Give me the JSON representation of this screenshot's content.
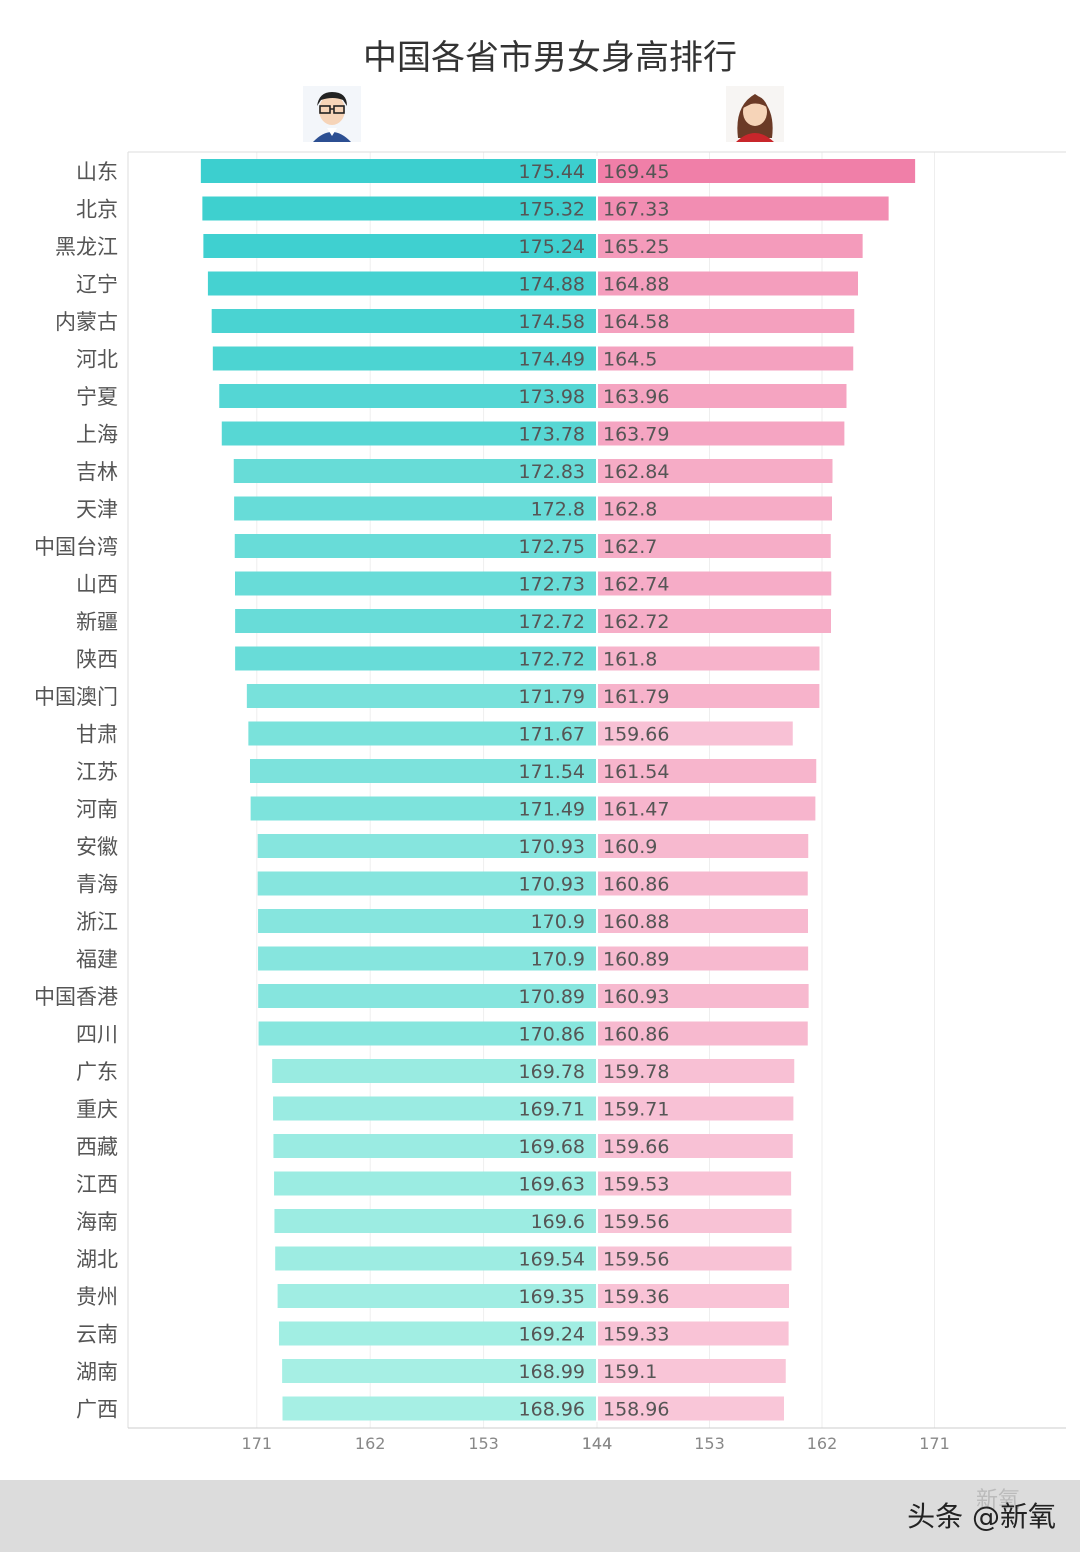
{
  "chart_data": {
    "type": "bar",
    "title": "中国各省市男女身高排行",
    "categories": [
      "山东",
      "北京",
      "黑龙江",
      "辽宁",
      "内蒙古",
      "河北",
      "宁夏",
      "上海",
      "吉林",
      "天津",
      "中国台湾",
      "山西",
      "新疆",
      "陕西",
      "中国澳门",
      "甘肃",
      "江苏",
      "河南",
      "安徽",
      "青海",
      "浙江",
      "福建",
      "中国香港",
      "四川",
      "广东",
      "重庆",
      "西藏",
      "江西",
      "海南",
      "湖北",
      "贵州",
      "云南",
      "湖南",
      "广西"
    ],
    "series": [
      {
        "icon": "male-avatar-icon",
        "values": [
          175.44,
          175.32,
          175.24,
          174.88,
          174.58,
          174.49,
          173.98,
          173.78,
          172.83,
          172.8,
          172.75,
          172.73,
          172.72,
          172.72,
          171.79,
          171.67,
          171.54,
          171.49,
          170.93,
          170.93,
          170.9,
          170.9,
          170.89,
          170.86,
          169.78,
          169.71,
          169.68,
          169.63,
          169.6,
          169.54,
          169.35,
          169.24,
          168.99,
          168.96
        ],
        "color_dark": "#3ccfcf",
        "color_light": "#a6efe4"
      },
      {
        "icon": "female-avatar-icon",
        "values": [
          169.45,
          167.33,
          165.25,
          164.88,
          164.58,
          164.5,
          163.96,
          163.79,
          162.84,
          162.8,
          162.7,
          162.74,
          162.72,
          161.8,
          161.79,
          159.66,
          161.54,
          161.47,
          160.9,
          160.86,
          160.88,
          160.89,
          160.93,
          160.86,
          159.78,
          159.71,
          159.66,
          159.53,
          159.56,
          159.56,
          159.36,
          159.33,
          159.1,
          158.96
        ],
        "color_dark": "#f07fa8",
        "color_light": "#f9c6d8"
      }
    ],
    "axis": {
      "left_ticks": [
        "171",
        "162",
        "153",
        "144"
      ],
      "right_ticks": [
        "144",
        "153",
        "162",
        "171"
      ],
      "grid": true
    }
  },
  "watermark": "头条 @新氧",
  "ghost_mark": "新氧"
}
